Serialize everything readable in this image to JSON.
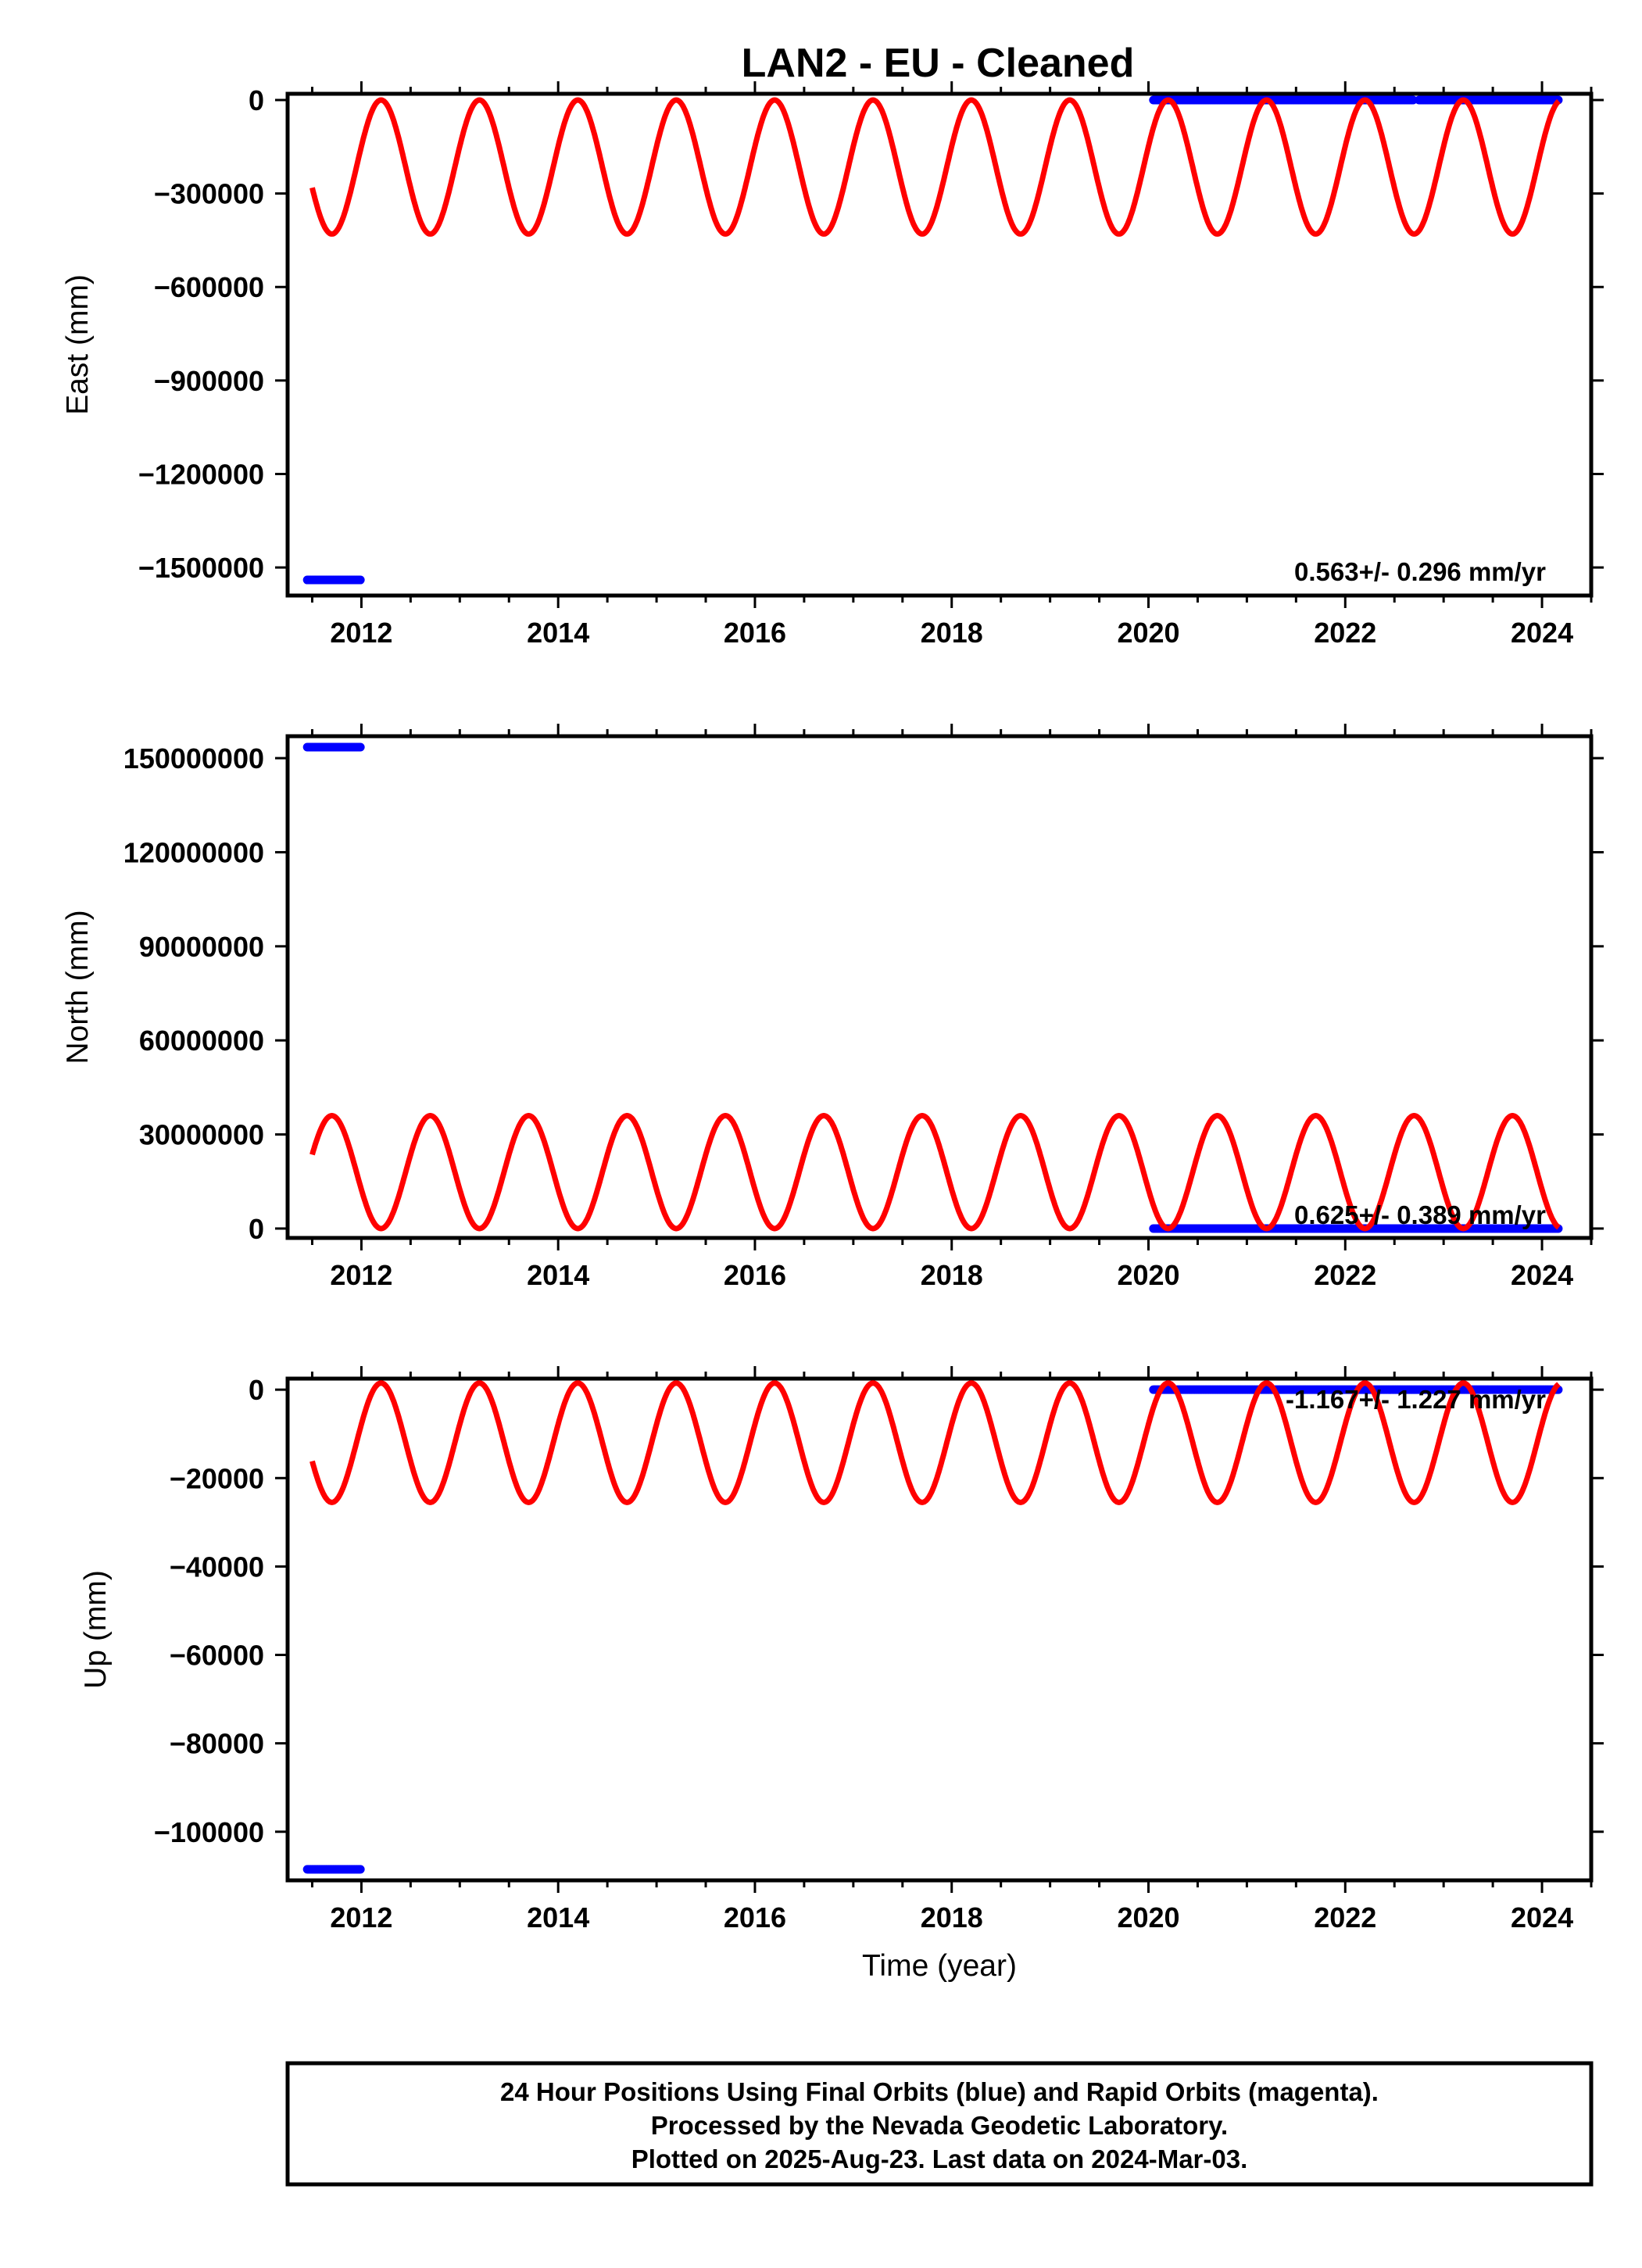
{
  "title": "LAN2  - EU - Cleaned",
  "xlabel": "Time (year)",
  "colors": {
    "model": "#ff0000",
    "final_orbits": "#0000ff",
    "frame": "#000000"
  },
  "chart_data": [
    {
      "type": "scatter",
      "panel": "east",
      "ylabel": "East (mm)",
      "xlim": [
        2011.25,
        2024.5
      ],
      "ylim": [
        -1590000,
        20000
      ],
      "x_ticks": [
        2012,
        2014,
        2016,
        2018,
        2020,
        2022,
        2024
      ],
      "y_ticks": [
        0,
        -300000,
        -600000,
        -900000,
        -1200000,
        -1500000
      ],
      "y_tick_labels": [
        "0",
        "−300000",
        "−600000",
        "−900000",
        "−1200000",
        "−1500000"
      ],
      "rate_text": "0.563+/- 0.296 mm/yr",
      "series": [
        {
          "segments": [
            {
              "x_start": 2011.45,
              "x_end": 2012.0,
              "y": -1540000
            },
            {
              "x_start": 2020.05,
              "x_end": 2022.7,
              "y": 0
            },
            {
              "x_start": 2022.75,
              "x_end": 2024.17,
              "y": 0
            }
          ]
        }
      ],
      "model": {
        "x_start": 2011.5,
        "x_end": 2024.17,
        "period_yr": 1.0,
        "peak_x": 2012.2,
        "min": -430000,
        "max": 0
      }
    },
    {
      "type": "scatter",
      "panel": "north",
      "ylabel": "North (mm)",
      "xlim": [
        2011.25,
        2024.5
      ],
      "ylim": [
        -3000000,
        157000000
      ],
      "x_ticks": [
        2012,
        2014,
        2016,
        2018,
        2020,
        2022,
        2024
      ],
      "y_ticks": [
        0,
        30000000,
        60000000,
        90000000,
        120000000,
        150000000
      ],
      "y_tick_labels": [
        "0",
        "30000000",
        "60000000",
        "90000000",
        "120000000",
        "150000000"
      ],
      "rate_text": "0.625+/- 0.389 mm/yr",
      "series": [
        {
          "segments": [
            {
              "x_start": 2011.45,
              "x_end": 2012.0,
              "y": 153500000
            },
            {
              "x_start": 2020.05,
              "x_end": 2024.17,
              "y": 0
            }
          ]
        }
      ],
      "model": {
        "x_start": 2011.5,
        "x_end": 2024.17,
        "period_yr": 1.0,
        "peak_x": 2011.7,
        "min": 0,
        "max": 36000000
      }
    },
    {
      "type": "scatter",
      "panel": "up",
      "ylabel": "Up (mm)",
      "xlim": [
        2011.25,
        2024.5
      ],
      "ylim": [
        -111000,
        2500
      ],
      "x_ticks": [
        2012,
        2014,
        2016,
        2018,
        2020,
        2022,
        2024
      ],
      "y_ticks": [
        0,
        -20000,
        -40000,
        -60000,
        -80000,
        -100000
      ],
      "y_tick_labels": [
        "0",
        "−20000",
        "−40000",
        "−60000",
        "−80000",
        "−100000"
      ],
      "rate_text": "-1.167+/- 1.227 mm/yr",
      "series": [
        {
          "segments": [
            {
              "x_start": 2011.45,
              "x_end": 2012.0,
              "y": -108500
            },
            {
              "x_start": 2020.05,
              "x_end": 2024.17,
              "y": 0
            }
          ]
        }
      ],
      "model": {
        "x_start": 2011.5,
        "x_end": 2024.17,
        "period_yr": 1.0,
        "peak_x": 2012.2,
        "min": -25500,
        "max": 1500
      }
    }
  ],
  "footer": {
    "line1": "24 Hour Positions Using Final Orbits (blue) and Rapid Orbits (magenta).",
    "line2": "Processed by the Nevada Geodetic Laboratory.",
    "line3": "Plotted on 2025-Aug-23. Last data on 2024-Mar-03."
  }
}
